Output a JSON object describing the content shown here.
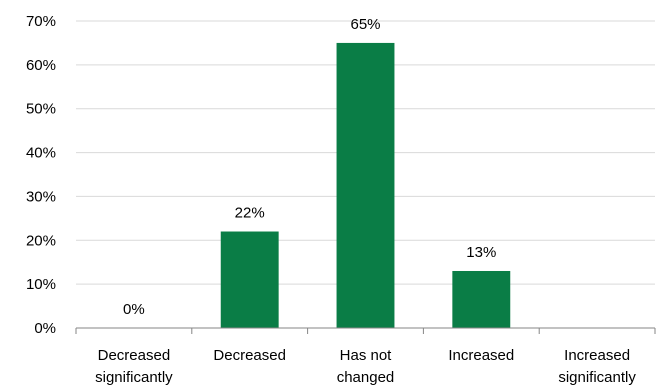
{
  "chart_data": {
    "type": "bar",
    "categories": [
      [
        "Decreased",
        "significantly"
      ],
      [
        "Decreased"
      ],
      [
        "Has not",
        "changed"
      ],
      [
        "Increased"
      ],
      [
        "Increased",
        "significantly"
      ]
    ],
    "values": [
      0,
      22,
      65,
      13,
      null
    ],
    "data_labels": [
      "0%",
      "22%",
      "65%",
      "13%",
      ""
    ],
    "ylim": [
      0,
      70
    ],
    "yticks": [
      0,
      10,
      20,
      30,
      40,
      50,
      60,
      70
    ],
    "ytick_labels": [
      "0%",
      "10%",
      "20%",
      "30%",
      "40%",
      "50%",
      "60%",
      "70%"
    ],
    "grid": true,
    "legend": "none",
    "bar_color": "#0a7d46",
    "grid_color": "#d9d9d9",
    "axis_color": "#868686"
  }
}
